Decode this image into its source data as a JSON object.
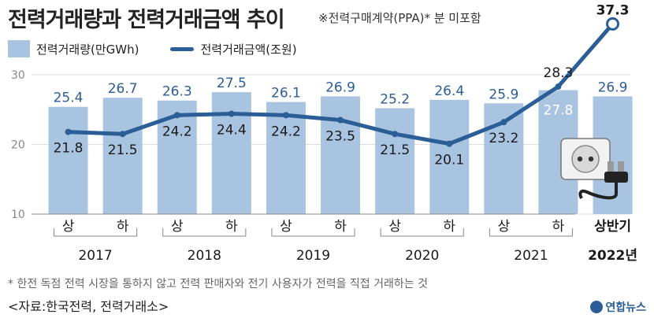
{
  "title": "전력거래량과 전력거래금액 추이",
  "subnote": "※전력구매계약(PPA)* 분 미포함",
  "legend": {
    "bar_label": "전력거래량(만GWh)",
    "line_label": "전력거래금액(조원)"
  },
  "footnote": "* 한전 독점 전력 시장을 통하지 않고 전력 판매자와 전기 사용자가 전력을 직접 거래하는 것",
  "source": "<자료:한국전력, 전력거래소>",
  "logo": "연합뉴스",
  "colors": {
    "bar": "#a9c4e0",
    "line": "#2b5d96",
    "axis": "#888888"
  },
  "chart_data": {
    "type": "bar",
    "categories": [
      "상",
      "하",
      "상",
      "하",
      "상",
      "하",
      "상",
      "하",
      "상",
      "하",
      "상반기"
    ],
    "year_labels": [
      "2017",
      "2018",
      "2019",
      "2020",
      "2021",
      "2022년"
    ],
    "yticks": [
      10,
      20,
      30
    ],
    "ylim": [
      10,
      30
    ],
    "series": [
      {
        "name": "전력거래량(만GWh)",
        "type": "bar",
        "values": [
          25.4,
          26.7,
          26.3,
          27.5,
          26.1,
          26.9,
          25.2,
          26.4,
          25.9,
          27.8,
          26.9
        ],
        "labels": [
          "25.4",
          "26.7",
          "26.3",
          "27.5",
          "26.1",
          "26.9",
          "25.2",
          "26.4",
          "25.9",
          "27.8",
          "26.9"
        ]
      },
      {
        "name": "전력거래금액(조원)",
        "type": "line",
        "values": [
          21.8,
          21.5,
          24.2,
          24.4,
          24.2,
          23.5,
          21.5,
          20.1,
          23.2,
          28.3,
          37.3
        ],
        "labels": [
          "21.8",
          "21.5",
          "24.2",
          "24.4",
          "24.2",
          "23.5",
          "21.5",
          "20.1",
          "23.2",
          "28.3",
          "37.3"
        ]
      }
    ]
  }
}
